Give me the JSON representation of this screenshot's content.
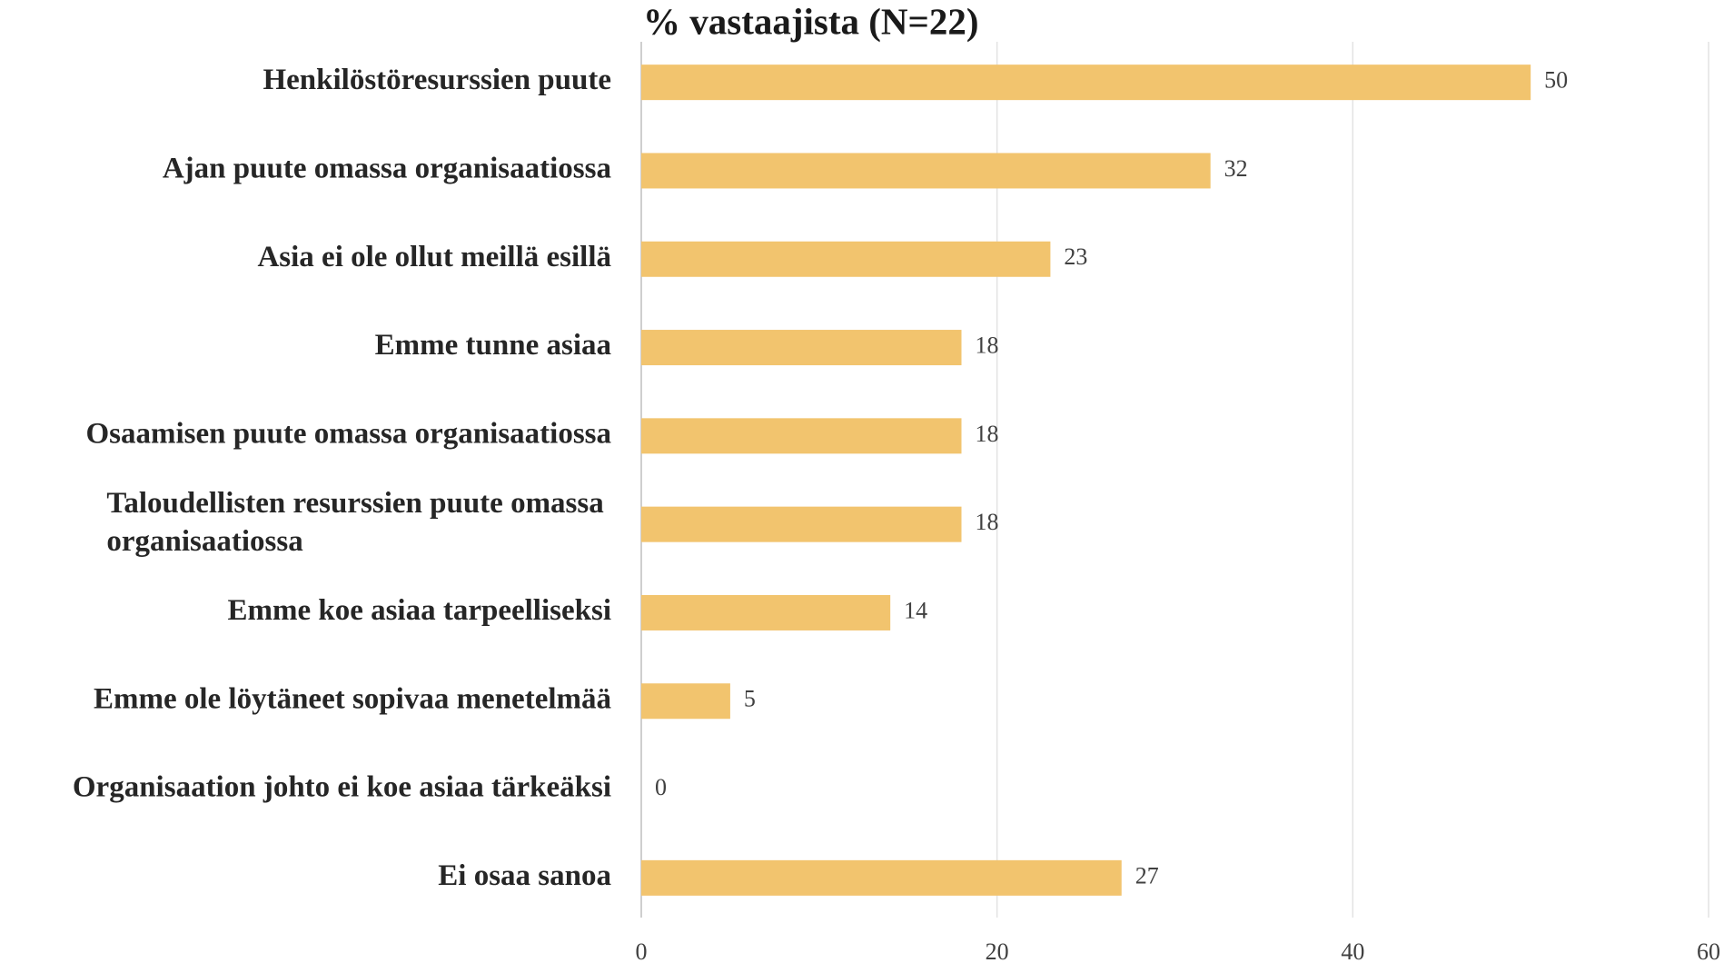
{
  "chart_data": {
    "type": "bar",
    "orientation": "horizontal",
    "title": "% vastaajista (N=22)",
    "categories": [
      "Henkilöstöresurssien puute",
      "Ajan puute omassa organisaatiossa",
      "Asia ei ole ollut meillä esillä",
      "Emme tunne asiaa",
      "Osaamisen puute omassa organisaatiossa",
      "Taloudellisten resurssien puute omassa organisaatiossa",
      "Emme koe asiaa tarpeelliseksi",
      "Emme ole löytäneet sopivaa menetelmää",
      "Organisaation johto ei koe asiaa tärkeäksi",
      "Ei osaa sanoa"
    ],
    "values": [
      50,
      32,
      23,
      18,
      18,
      18,
      14,
      5,
      0,
      27
    ],
    "color": "#f2c46e",
    "xlim": [
      0,
      60
    ],
    "xticks": [
      0,
      20,
      40,
      60
    ],
    "grid": true
  }
}
